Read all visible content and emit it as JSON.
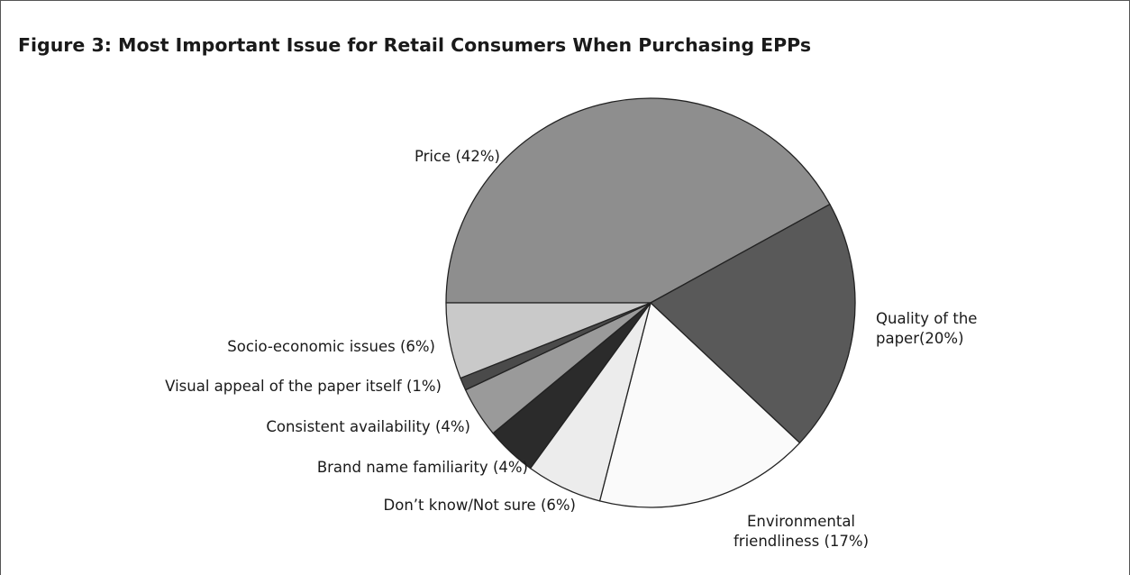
{
  "chart_data": {
    "type": "pie",
    "title": "Figure 3: Most Important Issue for Retail Consumers When Purchasing EPPs",
    "slices": [
      {
        "label": "Price (42%)",
        "value": 42,
        "color": "#8e8e8e"
      },
      {
        "label": "Quality of the paper(20%)",
        "label_lines": [
          "Quality of the",
          "paper(20%)"
        ],
        "value": 20,
        "color": "#595959"
      },
      {
        "label": "Environmental friendliness (17%)",
        "label_lines": [
          "Environmental",
          "friendliness  (17%)"
        ],
        "value": 17,
        "color": "#fafafa"
      },
      {
        "label": "Don’t know/Not sure (6%)",
        "value": 6,
        "color": "#ececec"
      },
      {
        "label": "Brand name familiarity (4%)",
        "value": 4,
        "color": "#2b2b2b"
      },
      {
        "label": "Consistent availability (4%)",
        "value": 4,
        "color": "#9a9a9a"
      },
      {
        "label": "Visual appeal of the paper itself (1%)",
        "value": 1,
        "color": "#4a4a4a"
      },
      {
        "label": "Socio-economic issues (6%)",
        "value": 6,
        "color": "#c9c9c9"
      }
    ],
    "start": "left",
    "direction": "clockwise",
    "legend": "none"
  }
}
